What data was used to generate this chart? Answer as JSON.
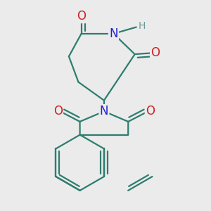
{
  "bg_color": "#ebebeb",
  "bond_color": "#2d7d6e",
  "bond_width": 1.6,
  "N_color": "#2222cc",
  "O_color": "#cc2222",
  "H_color": "#6a9a9a",
  "font_size_atom": 10,
  "fig_size": [
    3.0,
    3.0
  ],
  "dpi": 100,
  "xlim": [
    0.05,
    0.95
  ],
  "ylim": [
    0.02,
    0.98
  ]
}
